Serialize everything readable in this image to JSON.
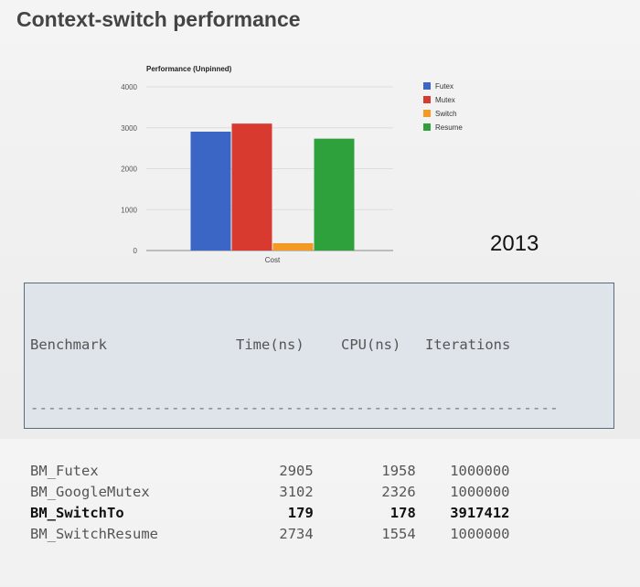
{
  "slide": {
    "title": "Context-switch performance",
    "year": "2013"
  },
  "chart_data": {
    "type": "bar",
    "title": "Performance (Unpinned)",
    "categories": [
      "Cost"
    ],
    "series": [
      {
        "name": "Futex",
        "values": [
          2905
        ],
        "color": "#3c66c6"
      },
      {
        "name": "Mutex",
        "values": [
          3102
        ],
        "color": "#d83a2f"
      },
      {
        "name": "Switch",
        "values": [
          179
        ],
        "color": "#f29a24"
      },
      {
        "name": "Resume",
        "values": [
          2734
        ],
        "color": "#2ea13c"
      }
    ],
    "yticks": [
      "0",
      "1000",
      "2000",
      "3000",
      "4000"
    ],
    "ylim": [
      0,
      4000
    ],
    "grid": true,
    "legend": "right"
  },
  "table": {
    "headers": [
      "Benchmark",
      "Time(ns)",
      "CPU(ns)",
      "Iterations"
    ],
    "separator": "------------------------------------------------------------",
    "rows": [
      {
        "name": "BM_Futex",
        "time": "2905",
        "cpu": "1958",
        "iterations": "1000000",
        "bold": false
      },
      {
        "name": "BM_GoogleMutex",
        "time": "3102",
        "cpu": "2326",
        "iterations": "1000000",
        "bold": false
      },
      {
        "name": "BM_SwitchTo",
        "time": "179",
        "cpu": "178",
        "iterations": "3917412",
        "bold": true
      },
      {
        "name": "BM_SwitchResume",
        "time": "2734",
        "cpu": "1554",
        "iterations": "1000000",
        "bold": false
      }
    ]
  }
}
